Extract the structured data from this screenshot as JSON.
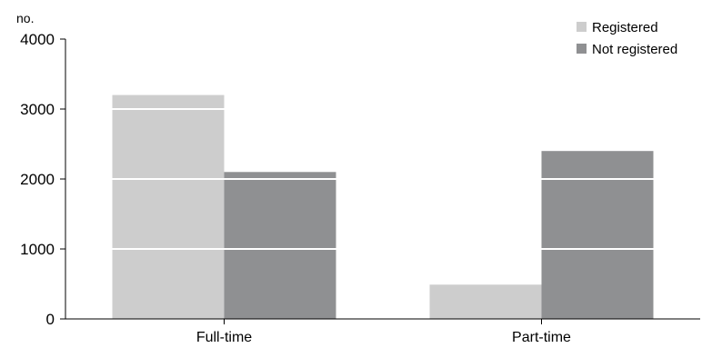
{
  "chart_data": {
    "type": "bar",
    "ylabel": "no.",
    "ylim": [
      0,
      4000
    ],
    "yticks": [
      0,
      1000,
      2000,
      3000,
      4000
    ],
    "categories": [
      "Full-time",
      "Part-time"
    ],
    "series": [
      {
        "name": "Registered",
        "values": [
          3200,
          490
        ],
        "color": "#cdcdcd"
      },
      {
        "name": "Not registered",
        "values": [
          2100,
          2400
        ],
        "color": "#8f9092"
      }
    ],
    "grid": "white lines across bars",
    "legend": "top-right"
  }
}
